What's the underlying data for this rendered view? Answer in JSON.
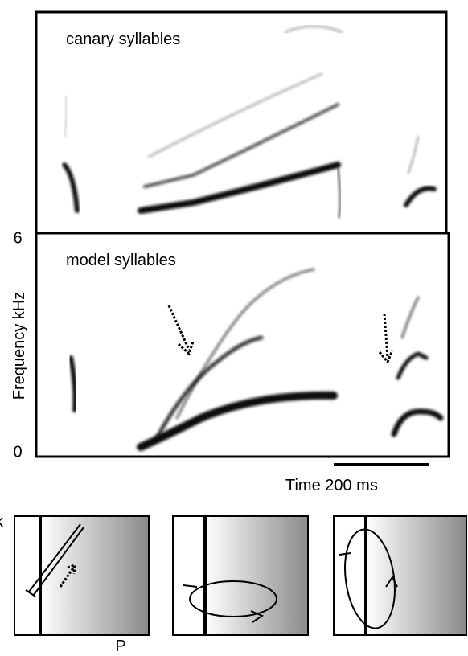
{
  "panels": {
    "top": {
      "label": "canary syllables"
    },
    "middle": {
      "label": "model syllables"
    }
  },
  "axis": {
    "y_label": "Frequency kHz",
    "y_top": "6",
    "y_bottom": "0",
    "scale_bar": "Time 200 ms"
  },
  "phase": {
    "x_label": "P",
    "y_label": "k"
  }
}
